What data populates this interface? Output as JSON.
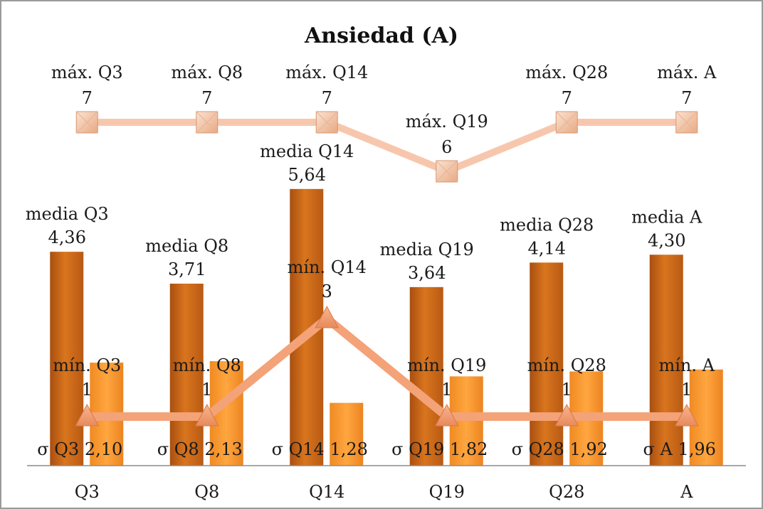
{
  "chart_data": {
    "type": "bar",
    "title": "Ansiedad (A)",
    "categories": [
      "Q3",
      "Q8",
      "Q14",
      "Q19",
      "Q28",
      "A"
    ],
    "ylim": [
      0,
      8
    ],
    "grid": false,
    "legend": "none",
    "series": [
      {
        "kind": "bar",
        "values": [
          4.36,
          3.71,
          5.64,
          3.64,
          4.14,
          4.3
        ],
        "labels": [
          [
            "media Q3",
            "4,36"
          ],
          [
            "media Q8",
            "3,71"
          ],
          [
            "media Q14",
            "5,64"
          ],
          [
            "media Q19",
            "3,64"
          ],
          [
            "media Q28",
            "4,14"
          ],
          [
            "media A",
            "4,30"
          ]
        ]
      },
      {
        "kind": "bar",
        "values": [
          2.1,
          2.13,
          1.28,
          1.82,
          1.92,
          1.96
        ],
        "labels": [
          "σ Q3 2,10",
          "σ Q8 2,13",
          "σ Q14 1,28",
          "σ Q19 1,82",
          "σ Q28 1,92",
          "σ A 1,96"
        ]
      },
      {
        "kind": "line",
        "marker": "square",
        "values": [
          7,
          7,
          7,
          6,
          7,
          7
        ],
        "labels": [
          [
            "máx. Q3",
            "7"
          ],
          [
            "máx. Q8",
            "7"
          ],
          [
            "máx. Q14",
            "7"
          ],
          [
            "máx. Q19",
            "6"
          ],
          [
            "máx. Q28",
            "7"
          ],
          [
            "máx. A",
            "7"
          ]
        ]
      },
      {
        "kind": "line",
        "marker": "triangle",
        "values": [
          1,
          1,
          3,
          1,
          1,
          1
        ],
        "labels": [
          [
            "mín. Q3",
            "1"
          ],
          [
            "mín. Q8",
            "1"
          ],
          [
            "mín. Q14",
            "3"
          ],
          [
            "mín. Q19",
            "1"
          ],
          [
            "mín. Q28",
            "1"
          ],
          [
            "mín. A",
            "1"
          ]
        ]
      }
    ],
    "colors": {
      "mean_bar": "#c8641a",
      "sd_bar": "#f5962f",
      "max_line": "#f7c7ad",
      "min_line": "#f4a277"
    }
  }
}
